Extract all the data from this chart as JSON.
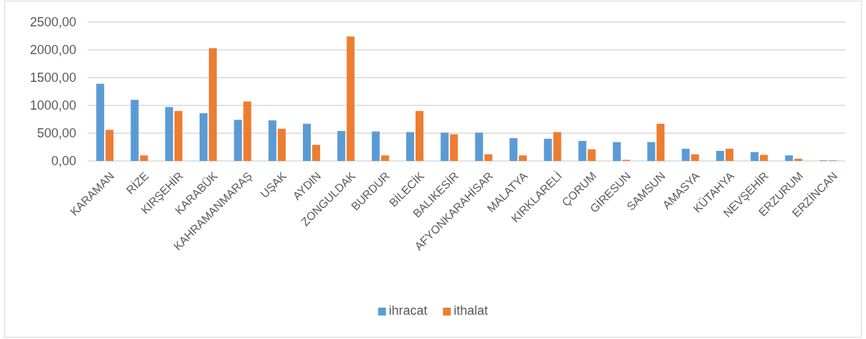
{
  "chart_data": {
    "type": "bar",
    "categories": [
      "KARAMAN",
      "RİZE",
      "KIRŞEHİR",
      "KARABÜK",
      "KAHRAMANMARAŞ",
      "UŞAK",
      "AYDIN",
      "ZONGULDAK",
      "BURDUR",
      "BİLECİK",
      "BALIKESİR",
      "AFYONKARAHİSAR",
      "MALATYA",
      "KIRKLARELİ",
      "ÇORUM",
      "GİRESUN",
      "SAMSUN",
      "AMASYA",
      "KÜTAHYA",
      "NEVŞEHİR",
      "ERZURUM",
      "ERZİNCAN"
    ],
    "series": [
      {
        "name": "ihracat",
        "color": "#5b9bd5",
        "values": [
          1390,
          1100,
          970,
          860,
          740,
          730,
          670,
          540,
          530,
          520,
          510,
          510,
          410,
          400,
          360,
          340,
          340,
          220,
          180,
          160,
          100,
          10
        ]
      },
      {
        "name": "ithalat",
        "color": "#ed7d31",
        "values": [
          560,
          100,
          900,
          2030,
          1070,
          580,
          290,
          2240,
          100,
          900,
          480,
          120,
          100,
          520,
          210,
          20,
          670,
          120,
          220,
          110,
          40,
          10
        ]
      }
    ],
    "ylim": [
      0,
      2500
    ],
    "yticks": [
      {
        "value": 0,
        "label": "0,00"
      },
      {
        "value": 500,
        "label": "500,00"
      },
      {
        "value": 1000,
        "label": "1000,00"
      },
      {
        "value": 1500,
        "label": "1500,00"
      },
      {
        "value": 2000,
        "label": "2000,00"
      },
      {
        "value": 2500,
        "label": "2500,00"
      }
    ],
    "grid": "y",
    "legend": "bottom"
  }
}
